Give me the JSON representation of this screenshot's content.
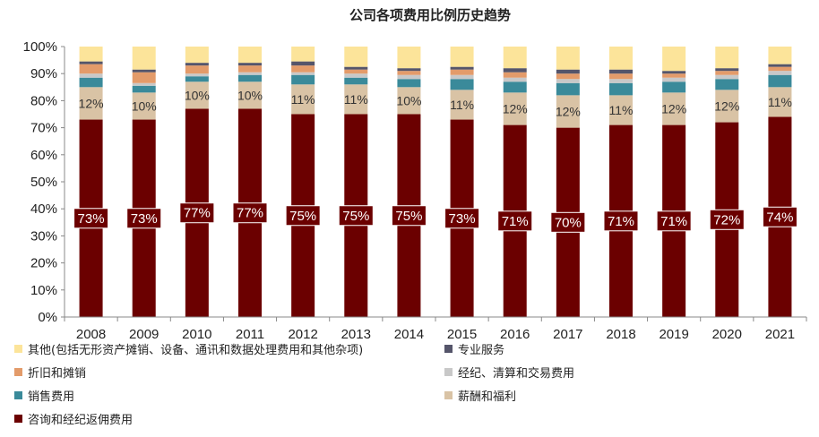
{
  "chart_data": {
    "type": "bar",
    "stacked": true,
    "title": "公司各项费用比例历史趋势",
    "categories": [
      "2008",
      "2009",
      "2010",
      "2011",
      "2012",
      "2013",
      "2014",
      "2015",
      "2016",
      "2017",
      "2018",
      "2019",
      "2020",
      "2021"
    ],
    "ylim": [
      0,
      100
    ],
    "yticks": [
      "0%",
      "10%",
      "20%",
      "30%",
      "40%",
      "50%",
      "60%",
      "70%",
      "80%",
      "90%",
      "100%"
    ],
    "grid": false,
    "legend_position": "bottom",
    "series": [
      {
        "name": "咨询和经纪返佣费用",
        "color": "#6B0000",
        "values": [
          73,
          73,
          77,
          77,
          75,
          75,
          75,
          73,
          71,
          70,
          71,
          71,
          72,
          74
        ],
        "labels": [
          "73%",
          "73%",
          "77%",
          "77%",
          "75%",
          "75%",
          "75%",
          "73%",
          "71%",
          "70%",
          "71%",
          "71%",
          "72%",
          "74%"
        ]
      },
      {
        "name": "薪酬和福利",
        "color": "#D9C3A5",
        "values": [
          12,
          10,
          10,
          10,
          11,
          11,
          10,
          11,
          12,
          12,
          11,
          12,
          12,
          11
        ],
        "labels": [
          "12%",
          "10%",
          "10%",
          "10%",
          "11%",
          "11%",
          "10%",
          "11%",
          "12%",
          "12%",
          "11%",
          "12%",
          "12%",
          "11%"
        ]
      },
      {
        "name": "销售费用",
        "color": "#3A8A9A",
        "values": [
          3.5,
          2.5,
          2,
          2.5,
          3.5,
          2.5,
          3,
          4,
          4,
          4.5,
          4.5,
          4,
          4,
          4.5
        ]
      },
      {
        "name": "经纪、清算和交易费用",
        "color": "#C8C8C8",
        "values": [
          1.5,
          1,
          1,
          1,
          1,
          1.5,
          1.5,
          1.5,
          1.5,
          1.5,
          1.5,
          1.5,
          1.5,
          1.5
        ]
      },
      {
        "name": "折旧和摊销",
        "color": "#E39B6A",
        "values": [
          3.5,
          4,
          3,
          2.5,
          2.5,
          1.5,
          1.5,
          2,
          2,
          2,
          2,
          1.5,
          1.5,
          1.5
        ]
      },
      {
        "name": "专业服务",
        "color": "#55556A",
        "values": [
          1,
          1,
          1,
          1,
          1.5,
          1,
          1,
          1,
          1.5,
          1.5,
          1.5,
          1,
          1,
          1
        ]
      },
      {
        "name": "其他(包括无形资产摊销、设备、通讯和数据处理费用和其他杂项)",
        "color": "#FCE49A",
        "values": [
          5.5,
          8.5,
          6,
          6,
          5.5,
          7.5,
          8,
          7.5,
          8,
          8.5,
          8.5,
          9,
          8,
          6.5
        ]
      }
    ]
  }
}
